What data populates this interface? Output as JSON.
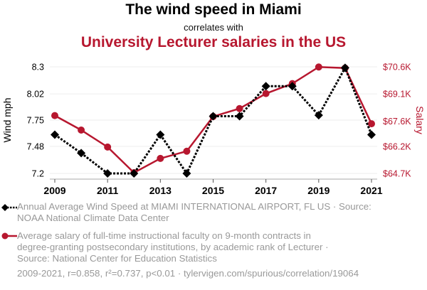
{
  "header": {
    "title": "The wind speed in Miami",
    "connector": "correlates with",
    "subtitle": "University Lecturer salaries in the US"
  },
  "colors": {
    "series1": "#000000",
    "series2": "#b7172f",
    "grid": "#eeeeee",
    "legend_text": "#999999"
  },
  "chart_data": {
    "type": "line",
    "title": "The wind speed in Miami correlates with University Lecturer salaries in the US",
    "x": [
      2009,
      2010,
      2011,
      2012,
      2013,
      2014,
      2015,
      2016,
      2017,
      2018,
      2019,
      2020,
      2021
    ],
    "xticks": [
      "2009",
      "2011",
      "2013",
      "2015",
      "2017",
      "2019",
      "2021"
    ],
    "xlim": [
      2009,
      2021
    ],
    "grid": true,
    "series": [
      {
        "name": "Annual Average Wind Speed at MIAMI INTERNATIONAL AIRPORT, FL US",
        "axis": "left",
        "style": "dotted",
        "marker": "diamond",
        "values": [
          7.6,
          7.41,
          7.2,
          7.2,
          7.6,
          7.2,
          7.79,
          7.79,
          8.1,
          8.1,
          7.8,
          8.29,
          7.6
        ]
      },
      {
        "name": "Average salary of full-time instructional faculty on 9-month contracts, Lecturer",
        "axis": "right",
        "style": "solid",
        "marker": "circle",
        "values": [
          67.9,
          67.1,
          66.16,
          64.74,
          65.53,
          65.93,
          67.85,
          68.29,
          69.12,
          69.67,
          70.59,
          70.53,
          67.45
        ]
      }
    ],
    "yleft": {
      "label": "Wind mph",
      "ticks": [
        "8.3",
        "8.02",
        "7.75",
        "7.48",
        "7.2"
      ],
      "tick_values": [
        8.3,
        8.02,
        7.75,
        7.48,
        7.2
      ],
      "ylim": [
        7.2,
        8.3
      ]
    },
    "yright": {
      "label": "Salary",
      "ticks": [
        "$70.6K",
        "$69.1K",
        "$67.6K",
        "$66.2K",
        "$64.7K"
      ],
      "tick_values": [
        70.6,
        69.1,
        67.6,
        66.2,
        64.7
      ],
      "ylim": [
        64.7,
        70.6
      ]
    }
  },
  "legend": [
    {
      "line1": "Annual Average Wind Speed at MIAMI INTERNATIONAL AIRPORT, FL US · Source:",
      "line2": "NOAA National Climate Data Center"
    },
    {
      "line1": "Average salary of full-time instructional faculty on 9-month contracts in",
      "line2": "degree-granting postsecondary institutions, by academic rank of Lecturer ·",
      "line3": "Source: National Center for Education Statistics"
    }
  ],
  "footer": "2009-2021, r=0.858, r²=0.737, p<0.01 · tylervigen.com/spurious/correlation/19064"
}
